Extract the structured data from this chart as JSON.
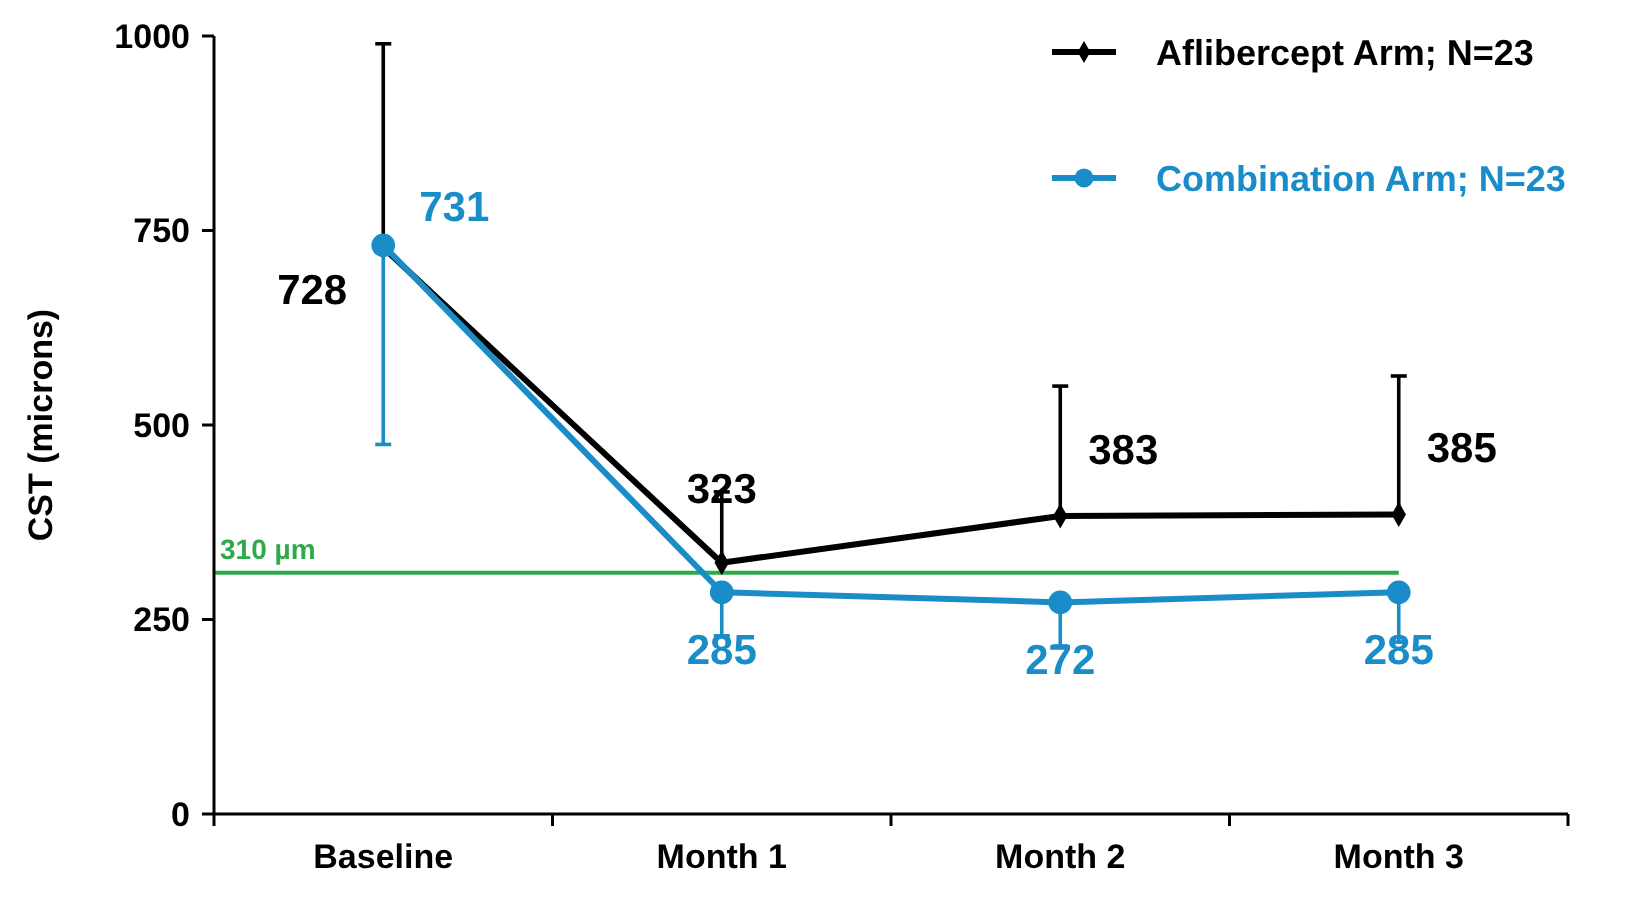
{
  "chart_data": {
    "type": "line",
    "ylabel": "CST (microns)",
    "categories": [
      "Baseline",
      "Month 1",
      "Month 2",
      "Month 3"
    ],
    "series": [
      {
        "name": "Aflibercept Arm; N=23",
        "color": "#000000",
        "marker": "diamond",
        "values": [
          728,
          323,
          383,
          385
        ],
        "errors": [
          [
            728,
            990
          ],
          [
            323,
            414
          ],
          [
            383,
            550
          ],
          [
            385,
            563
          ]
        ]
      },
      {
        "name": "Combination Arm; N=23",
        "color": "#1a8dc8",
        "marker": "circle",
        "values": [
          731,
          285,
          272,
          285
        ],
        "errors": [
          [
            475,
            731
          ],
          [
            229,
            285
          ],
          [
            216,
            272
          ],
          [
            221,
            285
          ]
        ]
      }
    ],
    "ylim": [
      0,
      1000
    ],
    "yticks": [
      0,
      250,
      500,
      750,
      1000
    ],
    "ref_lines": [
      {
        "axis": "y",
        "value": 310,
        "label": "310 µm",
        "color": "#2eaa4a"
      }
    ],
    "data_labels": true,
    "legend": "top right",
    "grid": false,
    "line_style": "solid"
  }
}
